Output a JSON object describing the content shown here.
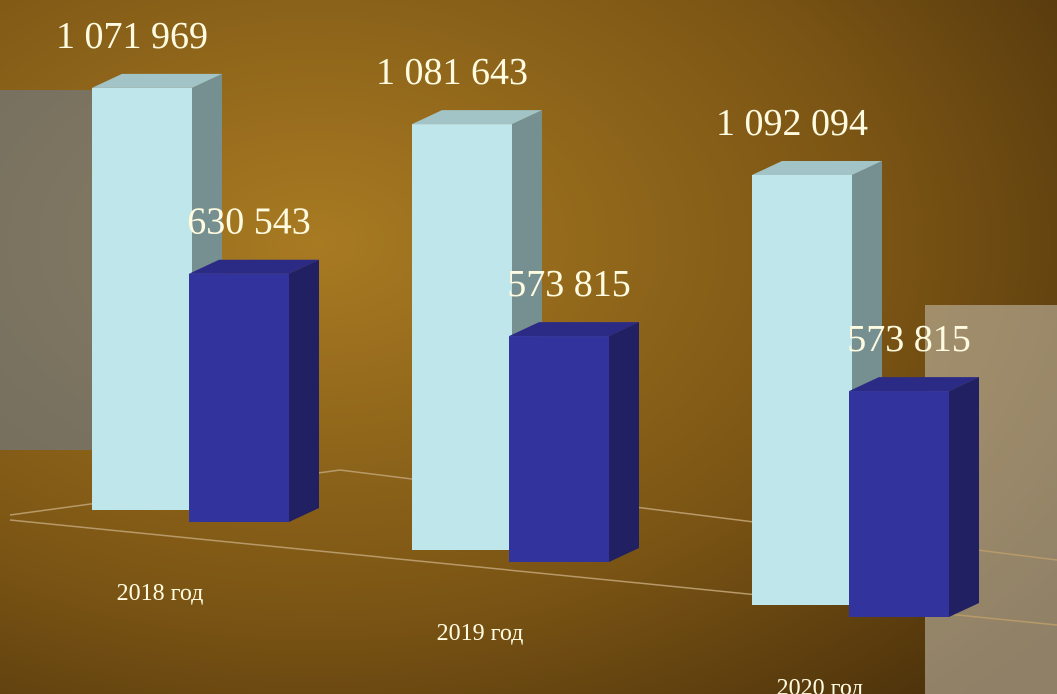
{
  "chart_data": {
    "type": "bar3d",
    "categories": [
      "2018 год",
      "2019 год",
      "2020 год"
    ],
    "series": [
      {
        "color": "#bfe6ea",
        "values": [
          1071969,
          1081643,
          1092094
        ],
        "value_labels": [
          "1 071 969",
          "1 081 643",
          "1 092 094"
        ]
      },
      {
        "color": "#33339e",
        "values": [
          630543,
          573815,
          573815
        ],
        "value_labels": [
          "630 543",
          "573 815",
          "573 815"
        ]
      }
    ]
  }
}
